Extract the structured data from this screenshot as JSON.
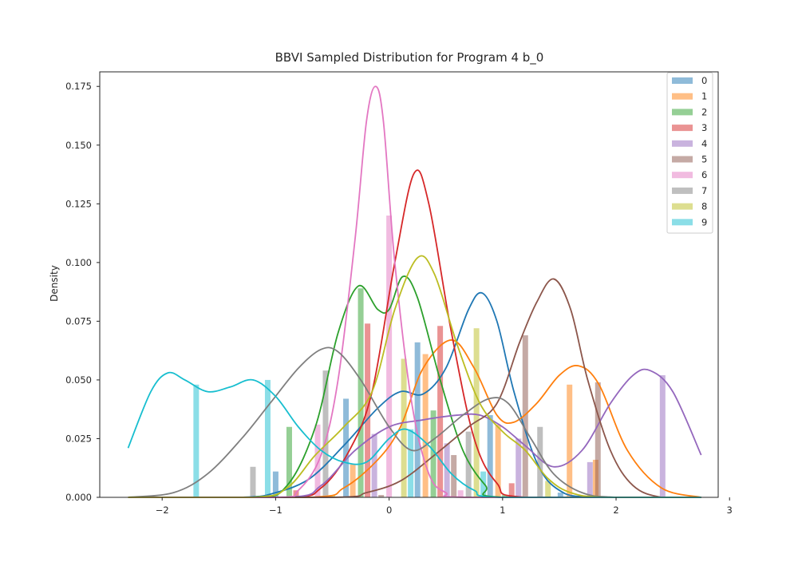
{
  "chart_data": {
    "type": "bar",
    "title": "BBVI Sampled Distribution for Program 4 b_0",
    "xlabel": "",
    "ylabel": "Density",
    "xlim": [
      -2.55,
      2.9
    ],
    "ylim": [
      0,
      0.1812
    ],
    "xticks": [
      -2,
      -1,
      0,
      1,
      2,
      3
    ],
    "yticks": [
      0.0,
      0.025,
      0.05,
      0.075,
      0.1,
      0.125,
      0.15,
      0.175
    ],
    "xtick_labels": [
      "−2",
      "−1",
      "0",
      "1",
      "2",
      "3"
    ],
    "ytick_labels": [
      "0.000",
      "0.025",
      "0.050",
      "0.075",
      "0.100",
      "0.125",
      "0.150",
      "0.175"
    ],
    "grid": false,
    "legend_position": "top-right",
    "series": [
      {
        "name": "0",
        "color": "#1f77b4",
        "bars": [
          [
            -1.0,
            0.011
          ],
          [
            -0.38,
            0.042
          ],
          [
            0.25,
            0.066
          ],
          [
            0.89,
            0.035
          ],
          [
            1.51,
            0.002
          ]
        ],
        "kde": [
          [
            -2.3,
            0
          ],
          [
            -1.3,
            0
          ],
          [
            -1.0,
            0.002
          ],
          [
            -0.7,
            0.008
          ],
          [
            -0.4,
            0.022
          ],
          [
            -0.1,
            0.038
          ],
          [
            0.1,
            0.045
          ],
          [
            0.3,
            0.044
          ],
          [
            0.5,
            0.055
          ],
          [
            0.7,
            0.08
          ],
          [
            0.82,
            0.087
          ],
          [
            0.95,
            0.075
          ],
          [
            1.1,
            0.045
          ],
          [
            1.3,
            0.015
          ],
          [
            1.5,
            0.003
          ],
          [
            1.8,
            0
          ],
          [
            2.75,
            0
          ]
        ]
      },
      {
        "name": "1",
        "color": "#ff7f0e",
        "bars": [
          [
            -0.32,
            0.014
          ],
          [
            0.32,
            0.061
          ],
          [
            0.96,
            0.031
          ],
          [
            1.59,
            0.048
          ],
          [
            1.82,
            0.016
          ]
        ],
        "kde": [
          [
            -2.3,
            0
          ],
          [
            -0.7,
            0
          ],
          [
            -0.4,
            0.004
          ],
          [
            -0.1,
            0.016
          ],
          [
            0.1,
            0.03
          ],
          [
            0.3,
            0.055
          ],
          [
            0.55,
            0.067
          ],
          [
            0.75,
            0.055
          ],
          [
            0.95,
            0.035
          ],
          [
            1.1,
            0.032
          ],
          [
            1.3,
            0.04
          ],
          [
            1.5,
            0.052
          ],
          [
            1.67,
            0.056
          ],
          [
            1.85,
            0.048
          ],
          [
            2.1,
            0.02
          ],
          [
            2.4,
            0.004
          ],
          [
            2.75,
            0
          ]
        ]
      },
      {
        "name": "2",
        "color": "#2ca02c",
        "bars": [
          [
            -0.88,
            0.03
          ],
          [
            -0.25,
            0.089
          ],
          [
            0.39,
            0.037
          ],
          [
            1.02,
            0.001
          ]
        ],
        "kde": [
          [
            -2.3,
            0
          ],
          [
            -1.2,
            0
          ],
          [
            -0.9,
            0.005
          ],
          [
            -0.65,
            0.03
          ],
          [
            -0.45,
            0.07
          ],
          [
            -0.27,
            0.09
          ],
          [
            -0.1,
            0.08
          ],
          [
            0.0,
            0.08
          ],
          [
            0.12,
            0.094
          ],
          [
            0.25,
            0.085
          ],
          [
            0.45,
            0.05
          ],
          [
            0.65,
            0.02
          ],
          [
            0.85,
            0.005
          ],
          [
            1.0,
            0
          ],
          [
            2.75,
            0
          ]
        ]
      },
      {
        "name": "3",
        "color": "#d62728",
        "bars": [
          [
            -0.82,
            0.003
          ],
          [
            -0.19,
            0.074
          ],
          [
            0.45,
            0.073
          ],
          [
            1.08,
            0.006
          ]
        ],
        "kde": [
          [
            -2.3,
            0
          ],
          [
            -0.9,
            0
          ],
          [
            -0.6,
            0.004
          ],
          [
            -0.35,
            0.02
          ],
          [
            -0.15,
            0.045
          ],
          [
            0.05,
            0.1
          ],
          [
            0.22,
            0.138
          ],
          [
            0.35,
            0.125
          ],
          [
            0.55,
            0.07
          ],
          [
            0.75,
            0.025
          ],
          [
            0.95,
            0.006
          ],
          [
            1.2,
            0
          ],
          [
            2.75,
            0
          ]
        ]
      },
      {
        "name": "4",
        "color": "#9467bd",
        "bars": [
          [
            -0.13,
            0.027
          ],
          [
            0.51,
            0.023
          ],
          [
            1.14,
            0.025
          ],
          [
            1.77,
            0.015
          ],
          [
            2.41,
            0.052
          ]
        ],
        "kde": [
          [
            -2.3,
            0
          ],
          [
            -0.9,
            0
          ],
          [
            -0.6,
            0.005
          ],
          [
            -0.3,
            0.02
          ],
          [
            0.0,
            0.03
          ],
          [
            0.3,
            0.033
          ],
          [
            0.6,
            0.035
          ],
          [
            0.8,
            0.035
          ],
          [
            1.0,
            0.03
          ],
          [
            1.2,
            0.022
          ],
          [
            1.45,
            0.013
          ],
          [
            1.7,
            0.02
          ],
          [
            1.95,
            0.04
          ],
          [
            2.15,
            0.052
          ],
          [
            2.3,
            0.054
          ],
          [
            2.5,
            0.045
          ],
          [
            2.75,
            0.018
          ]
        ]
      },
      {
        "name": "5",
        "color": "#8c564b",
        "bars": [
          [
            -0.07,
            0.001
          ],
          [
            0.57,
            0.018
          ],
          [
            1.2,
            0.069
          ],
          [
            1.84,
            0.049
          ]
        ],
        "kde": [
          [
            -2.3,
            0
          ],
          [
            -0.5,
            0
          ],
          [
            -0.2,
            0.002
          ],
          [
            0.1,
            0.007
          ],
          [
            0.4,
            0.018
          ],
          [
            0.7,
            0.03
          ],
          [
            0.95,
            0.04
          ],
          [
            1.15,
            0.066
          ],
          [
            1.3,
            0.083
          ],
          [
            1.45,
            0.093
          ],
          [
            1.6,
            0.08
          ],
          [
            1.75,
            0.05
          ],
          [
            1.95,
            0.02
          ],
          [
            2.15,
            0.005
          ],
          [
            2.4,
            0
          ],
          [
            2.75,
            0
          ]
        ]
      },
      {
        "name": "6",
        "color": "#e377c2",
        "bars": [
          [
            -0.63,
            0.031
          ],
          [
            0.0,
            0.12
          ],
          [
            0.63,
            0.003
          ]
        ],
        "kde": [
          [
            -2.3,
            0
          ],
          [
            -1.0,
            0
          ],
          [
            -0.8,
            0.003
          ],
          [
            -0.6,
            0.018
          ],
          [
            -0.45,
            0.05
          ],
          [
            -0.3,
            0.11
          ],
          [
            -0.2,
            0.16
          ],
          [
            -0.12,
            0.175
          ],
          [
            -0.05,
            0.16
          ],
          [
            0.05,
            0.1
          ],
          [
            0.2,
            0.04
          ],
          [
            0.35,
            0.01
          ],
          [
            0.5,
            0.002
          ],
          [
            0.7,
            0
          ],
          [
            2.75,
            0
          ]
        ]
      },
      {
        "name": "7",
        "color": "#7f7f7f",
        "bars": [
          [
            -1.2,
            0.013
          ],
          [
            -0.56,
            0.054
          ],
          [
            0.7,
            0.028
          ],
          [
            1.33,
            0.03
          ]
        ],
        "kde": [
          [
            -2.3,
            0
          ],
          [
            -1.9,
            0.002
          ],
          [
            -1.6,
            0.01
          ],
          [
            -1.3,
            0.025
          ],
          [
            -1.05,
            0.04
          ],
          [
            -0.8,
            0.055
          ],
          [
            -0.6,
            0.063
          ],
          [
            -0.45,
            0.062
          ],
          [
            -0.25,
            0.05
          ],
          [
            0.0,
            0.03
          ],
          [
            0.2,
            0.02
          ],
          [
            0.4,
            0.025
          ],
          [
            0.65,
            0.035
          ],
          [
            0.88,
            0.042
          ],
          [
            1.05,
            0.04
          ],
          [
            1.25,
            0.025
          ],
          [
            1.45,
            0.01
          ],
          [
            1.7,
            0.002
          ],
          [
            2.0,
            0
          ],
          [
            2.75,
            0
          ]
        ]
      },
      {
        "name": "8",
        "color": "#bcbd22",
        "bars": [
          [
            -0.5,
            0.001
          ],
          [
            0.13,
            0.059
          ],
          [
            0.77,
            0.072
          ],
          [
            1.4,
            0.007
          ]
        ],
        "kde": [
          [
            -2.3,
            0
          ],
          [
            -1.2,
            0
          ],
          [
            -0.9,
            0.004
          ],
          [
            -0.65,
            0.018
          ],
          [
            -0.4,
            0.03
          ],
          [
            -0.15,
            0.045
          ],
          [
            0.05,
            0.08
          ],
          [
            0.25,
            0.102
          ],
          [
            0.4,
            0.095
          ],
          [
            0.6,
            0.065
          ],
          [
            0.8,
            0.04
          ],
          [
            1.0,
            0.028
          ],
          [
            1.2,
            0.02
          ],
          [
            1.4,
            0.008
          ],
          [
            1.6,
            0.002
          ],
          [
            1.9,
            0
          ],
          [
            2.75,
            0
          ]
        ]
      },
      {
        "name": "9",
        "color": "#17becf",
        "bars": [
          [
            -1.7,
            0.048
          ],
          [
            -1.07,
            0.05
          ],
          [
            0.19,
            0.029
          ],
          [
            0.83,
            0.011
          ]
        ],
        "kde": [
          [
            -2.3,
            0.021
          ],
          [
            -2.1,
            0.045
          ],
          [
            -1.95,
            0.053
          ],
          [
            -1.8,
            0.05
          ],
          [
            -1.6,
            0.045
          ],
          [
            -1.4,
            0.047
          ],
          [
            -1.2,
            0.05
          ],
          [
            -1.0,
            0.043
          ],
          [
            -0.8,
            0.03
          ],
          [
            -0.6,
            0.02
          ],
          [
            -0.4,
            0.015
          ],
          [
            -0.2,
            0.015
          ],
          [
            0.0,
            0.025
          ],
          [
            0.15,
            0.029
          ],
          [
            0.35,
            0.022
          ],
          [
            0.55,
            0.01
          ],
          [
            0.75,
            0.003
          ],
          [
            1.0,
            0
          ],
          [
            2.75,
            0
          ]
        ]
      }
    ]
  }
}
